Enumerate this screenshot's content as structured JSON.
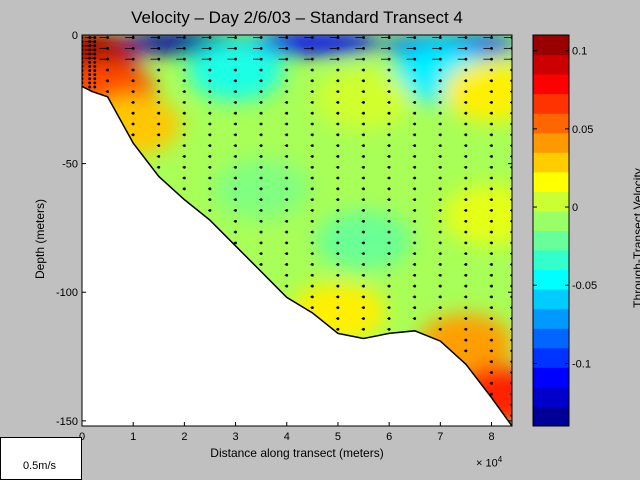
{
  "chart_data": {
    "type": "contour",
    "title": "Velocity – Day 2/6/03 – Standard Transect 4",
    "xlabel": "Distance along transect (meters)",
    "x_exponent": "× 10",
    "x_exponent_power": "4",
    "ylabel": "Depth (meters)",
    "colorbar_label": "Through-Transect Velocity (m/sec)",
    "xlim": [
      0,
      84000
    ],
    "ylim": [
      -152,
      0
    ],
    "clim": [
      -0.14,
      0.11
    ],
    "x_ticks": [
      0,
      10000,
      20000,
      30000,
      40000,
      50000,
      60000,
      70000,
      80000
    ],
    "x_tick_labels": [
      "0",
      "1",
      "2",
      "3",
      "4",
      "5",
      "6",
      "7",
      "8"
    ],
    "y_ticks": [
      0,
      -50,
      -100,
      -150
    ],
    "y_tick_labels": [
      "0",
      "-50",
      "-100",
      "-150"
    ],
    "colorbar_ticks": [
      0.1,
      0.05,
      0,
      -0.05,
      -0.1
    ],
    "colorbar_tick_labels": [
      "0.1",
      "0.05",
      "0",
      "-0.05",
      "-0.1"
    ],
    "scale_arrow_label": "0.5m/s",
    "scale_arrow_speed": 0.5,
    "bottom_profile": {
      "x": [
        0,
        2000,
        5000,
        10000,
        15000,
        20000,
        25000,
        30000,
        35000,
        40000,
        45000,
        50000,
        55000,
        60000,
        65000,
        70000,
        75000,
        80000,
        84000
      ],
      "depth": [
        -20,
        -22,
        -24,
        -42,
        -55,
        -64,
        -72,
        -82,
        -92,
        -102,
        -108,
        -116,
        -118,
        -116,
        -115,
        -119,
        -128,
        -141,
        -152
      ]
    },
    "station_x": [
      0,
      1500,
      2500,
      5000,
      10000,
      15000,
      20000,
      25000,
      30000,
      35000,
      40000,
      45000,
      50000,
      55000,
      60000,
      65000,
      70000,
      75000,
      80000,
      84000
    ],
    "velocity_features": [
      {
        "x": 20000,
        "depth": -3,
        "value": -0.13
      },
      {
        "x": 45000,
        "depth": -3,
        "value": -0.11
      },
      {
        "x": 72000,
        "depth": -4,
        "value": -0.09
      },
      {
        "x": 30000,
        "depth": -14,
        "value": -0.04
      },
      {
        "x": 70000,
        "depth": -15,
        "value": -0.05
      },
      {
        "x": 1500,
        "depth": -10,
        "value": 0.1
      },
      {
        "x": 5000,
        "depth": -22,
        "value": 0.06
      },
      {
        "x": 10000,
        "depth": -35,
        "value": 0.03
      },
      {
        "x": 55000,
        "depth": -25,
        "value": 0.005
      },
      {
        "x": 80000,
        "depth": -22,
        "value": 0.02
      },
      {
        "x": 35000,
        "depth": -60,
        "value": -0.015
      },
      {
        "x": 55000,
        "depth": -80,
        "value": -0.02
      },
      {
        "x": 80000,
        "depth": -70,
        "value": 0.01
      },
      {
        "x": 75000,
        "depth": -120,
        "value": 0.04
      },
      {
        "x": 82000,
        "depth": -140,
        "value": 0.07
      },
      {
        "x": 50000,
        "depth": -108,
        "value": 0.02
      }
    ]
  }
}
